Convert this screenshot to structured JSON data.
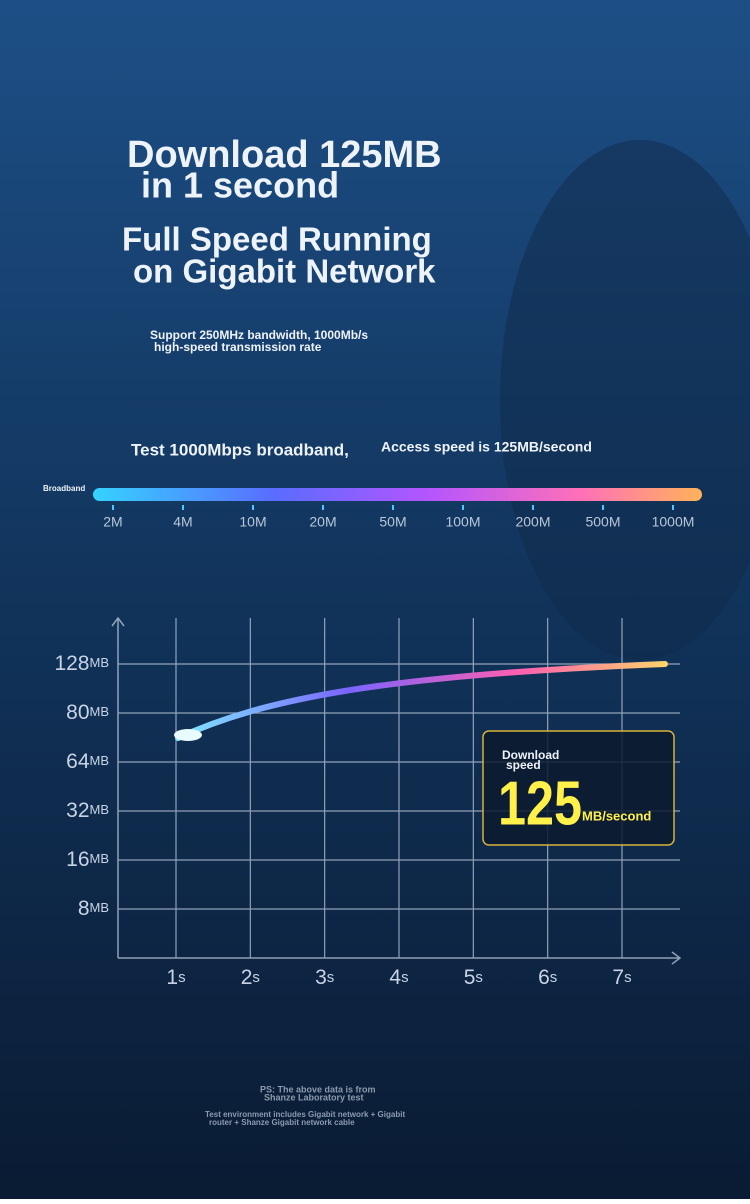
{
  "headline": [
    "Download 125MB",
    "in 1 second"
  ],
  "subheadline": [
    "Full Speed Running",
    "on Gigabit Network"
  ],
  "support_text": [
    "Support 250MHz bandwidth, 1000Mb/s",
    "high-speed transmission rate"
  ],
  "test_line": {
    "left": "Test 1000Mbps broadband,",
    "right": "Access speed is 125MB/second"
  },
  "broadband_scale": {
    "label": "Broadband",
    "ticks": [
      "2M",
      "4M",
      "10M",
      "20M",
      "50M",
      "100M",
      "200M",
      "500M",
      "1000M"
    ]
  },
  "speed_graph": {
    "y_labels": [
      {
        "number": "128",
        "unit": "MB"
      },
      {
        "number": "80",
        "unit": "MB"
      },
      {
        "number": "64",
        "unit": "MB"
      },
      {
        "number": "32",
        "unit": "MB"
      },
      {
        "number": "16",
        "unit": "MB"
      },
      {
        "number": "8",
        "unit": "MB"
      }
    ],
    "x_labels": [
      {
        "number": "1",
        "unit": "s"
      },
      {
        "number": "2",
        "unit": "s"
      },
      {
        "number": "3",
        "unit": "s"
      },
      {
        "number": "4",
        "unit": "s"
      },
      {
        "number": "5",
        "unit": "s"
      },
      {
        "number": "6",
        "unit": "s"
      },
      {
        "number": "7",
        "unit": "s"
      }
    ],
    "callout": {
      "title": [
        "Download",
        "speed"
      ],
      "number": "125",
      "unit": "MB/second"
    }
  },
  "footnote": [
    "PS: The above data is from",
    "Shanze Laboratory test",
    "Test environment includes Gigabit network + Gigabit",
    "router + Shanze Gigabit network cable"
  ]
}
